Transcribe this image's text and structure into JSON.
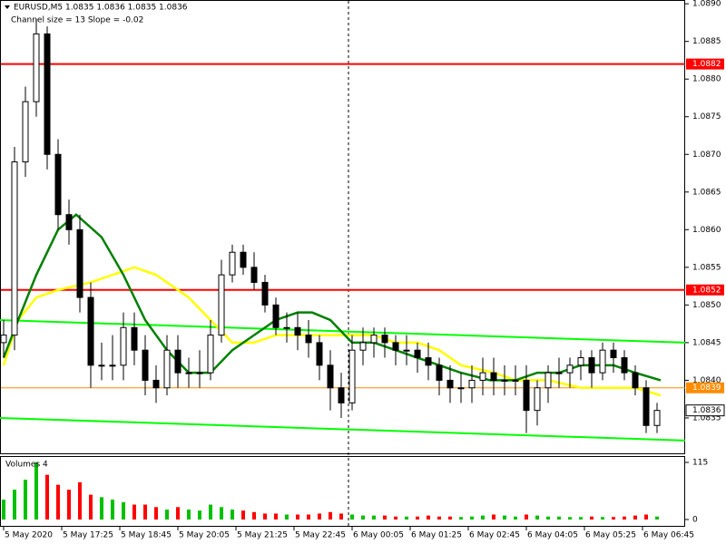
{
  "chart_data": {
    "type": "candlestick",
    "title": "EURUSD,M5  1.0835 1.0836 1.0835 1.0836",
    "subtitle": "Channel size = 13 Slope = -0.02",
    "x": [
      0,
      3,
      6,
      9,
      12,
      15,
      18,
      21,
      24,
      27,
      30,
      33,
      36,
      39,
      42,
      45,
      48,
      51,
      54,
      57,
      60,
      63,
      66,
      69,
      72,
      75,
      78,
      81,
      84,
      87,
      90,
      93,
      96,
      99,
      102,
      105,
      108,
      111,
      114,
      117,
      120,
      123,
      126,
      129,
      132,
      135,
      138,
      141,
      144,
      147,
      150,
      153,
      156,
      159,
      162,
      165,
      168,
      171,
      174,
      177,
      180
    ],
    "open": [
      1.0845,
      1.0846,
      1.0869,
      1.0877,
      1.0886,
      1.087,
      1.0862,
      1.086,
      1.0851,
      1.0842,
      1.0842,
      1.0842,
      1.0847,
      1.0844,
      1.084,
      1.0839,
      1.0844,
      1.0841,
      1.0841,
      1.0841,
      1.0846,
      1.0854,
      1.0857,
      1.0855,
      1.0853,
      1.085,
      1.0847,
      1.0847,
      1.0846,
      1.0845,
      1.0842,
      1.0839,
      1.0837,
      1.0844,
      1.0845,
      1.0846,
      1.0845,
      1.0844,
      1.0844,
      1.0843,
      1.0842,
      1.084,
      1.0839,
      1.0839,
      1.084,
      1.0841,
      1.084,
      1.084,
      1.084,
      1.0836,
      1.0839,
      1.0841,
      1.0841,
      1.0842,
      1.0843,
      1.0841,
      1.0844,
      1.0843,
      1.0841,
      1.0839,
      1.0834
    ],
    "high": [
      1.0848,
      1.0871,
      1.0879,
      1.0888,
      1.0887,
      1.0872,
      1.0864,
      1.0862,
      1.0853,
      1.0845,
      1.0846,
      1.0849,
      1.0849,
      1.0846,
      1.0842,
      1.0846,
      1.0846,
      1.0843,
      1.0844,
      1.0848,
      1.0856,
      1.0858,
      1.0858,
      1.0857,
      1.0854,
      1.0851,
      1.0849,
      1.0849,
      1.0848,
      1.0846,
      1.0844,
      1.0841,
      1.0846,
      1.0847,
      1.0847,
      1.0847,
      1.0846,
      1.0846,
      1.0845,
      1.0845,
      1.0843,
      1.0842,
      1.0841,
      1.0842,
      1.0843,
      1.0843,
      1.0842,
      1.0842,
      1.0842,
      1.084,
      1.0842,
      1.0843,
      1.0843,
      1.0844,
      1.0844,
      1.0845,
      1.0845,
      1.0844,
      1.0842,
      1.084,
      1.0837
    ],
    "low": [
      1.0843,
      1.0844,
      1.0867,
      1.0875,
      1.0868,
      1.086,
      1.0858,
      1.0849,
      1.0839,
      1.084,
      1.084,
      1.084,
      1.0842,
      1.0838,
      1.0837,
      1.0838,
      1.0839,
      1.0839,
      1.0839,
      1.084,
      1.0845,
      1.0853,
      1.0854,
      1.0852,
      1.0849,
      1.0846,
      1.0845,
      1.0844,
      1.0843,
      1.084,
      1.0836,
      1.0835,
      1.0836,
      1.0842,
      1.0843,
      1.0843,
      1.0842,
      1.0842,
      1.0841,
      1.084,
      1.0838,
      1.0837,
      1.0837,
      1.0837,
      1.0838,
      1.0838,
      1.0838,
      1.0838,
      1.0833,
      1.0834,
      1.0837,
      1.0839,
      1.0839,
      1.084,
      1.0839,
      1.084,
      1.0841,
      1.084,
      1.0838,
      1.0833,
      1.0833
    ],
    "close": [
      1.0846,
      1.0869,
      1.0877,
      1.0886,
      1.087,
      1.0862,
      1.086,
      1.0851,
      1.0842,
      1.0842,
      1.0842,
      1.0847,
      1.0844,
      1.084,
      1.0839,
      1.0844,
      1.0841,
      1.0841,
      1.0841,
      1.0846,
      1.0854,
      1.0857,
      1.0855,
      1.0853,
      1.085,
      1.0847,
      1.0847,
      1.0846,
      1.0845,
      1.0842,
      1.0839,
      1.0837,
      1.0844,
      1.0845,
      1.0846,
      1.0845,
      1.0844,
      1.0844,
      1.0843,
      1.0842,
      1.084,
      1.0839,
      1.0839,
      1.084,
      1.0841,
      1.084,
      1.084,
      1.084,
      1.0836,
      1.0839,
      1.0841,
      1.0841,
      1.0842,
      1.0843,
      1.0841,
      1.0844,
      1.0843,
      1.0841,
      1.0839,
      1.0834,
      1.0836
    ],
    "up_color": "#ffffff",
    "down_color": "#000000",
    "xlim": [
      -1,
      187.75
    ],
    "xticks": [
      {
        "value": 0,
        "label": "5 May 2020"
      },
      {
        "value": 16,
        "label": "5 May 17:25"
      },
      {
        "value": 32,
        "label": "5 May 18:45"
      },
      {
        "value": 48,
        "label": "5 May 20:05"
      },
      {
        "value": 64,
        "label": "5 May 21:25"
      },
      {
        "value": 80,
        "label": "5 May 22:45"
      },
      {
        "value": 96,
        "label": "6 May 00:05"
      },
      {
        "value": 112,
        "label": "6 May 01:25"
      },
      {
        "value": 128,
        "label": "6 May 02:45"
      },
      {
        "value": 144,
        "label": "6 May 04:05"
      },
      {
        "value": 160,
        "label": "6 May 05:25"
      },
      {
        "value": 176,
        "label": "6 May 06:45"
      }
    ],
    "ylim": [
      1.08303,
      1.08905
    ],
    "yticks": [
      {
        "value": 1.089,
        "label": "1.0890"
      },
      1.0885,
      {
        "value": 1.088,
        "label": "1.0880"
      },
      1.0875,
      {
        "value": 1.087,
        "label": "1.0870"
      },
      1.0865,
      {
        "value": 1.086,
        "label": "1.0860"
      },
      1.0855,
      {
        "value": 1.085,
        "label": "1.0850"
      },
      1.0845,
      {
        "value": 1.084,
        "label": "1.0840"
      },
      1.0835
    ],
    "series": [
      {
        "color": "#ffff00",
        "x": [
          0,
          4,
          9,
          15,
          24,
          36,
          42,
          51,
          57,
          63,
          69,
          75,
          84,
          93,
          102,
          108,
          114,
          120,
          126,
          135,
          141,
          150,
          159,
          168,
          174,
          181
        ],
        "values": [
          1.0842,
          1.0848,
          1.0851,
          1.0852,
          1.0853,
          1.0855,
          1.0854,
          1.0851,
          1.0848,
          1.0845,
          1.0845,
          1.0846,
          1.0846,
          1.0846,
          1.0846,
          1.0845,
          1.0845,
          1.0844,
          1.0842,
          1.0841,
          1.084,
          1.084,
          1.0839,
          1.0839,
          1.0839,
          1.0838
        ]
      },
      {
        "color": "#008000",
        "x": [
          0,
          4,
          9,
          15,
          20,
          27,
          33,
          39,
          45,
          51,
          57,
          63,
          69,
          75,
          81,
          85,
          90,
          96,
          102,
          108,
          114,
          120,
          126,
          134,
          141,
          147,
          153,
          159,
          168,
          174,
          181
        ],
        "values": [
          1.0843,
          1.0848,
          1.0854,
          1.086,
          1.0862,
          1.0859,
          1.0854,
          1.0848,
          1.0844,
          1.0841,
          1.0841,
          1.0844,
          1.0846,
          1.0848,
          1.0849,
          1.0849,
          1.0848,
          1.0845,
          1.0845,
          1.0844,
          1.0843,
          1.0842,
          1.0841,
          1.084,
          1.084,
          1.0841,
          1.0841,
          1.0842,
          1.0842,
          1.0841,
          1.084
        ]
      }
    ],
    "channel": {
      "color": "#00ff00",
      "x": [
        -1,
        187.75
      ],
      "upper": [
        1.0848,
        1.0845
      ],
      "lower": [
        1.0835,
        1.0832
      ]
    },
    "levels": [
      {
        "value": 1.0882,
        "color": "#ff0000"
      },
      {
        "value": 1.0852,
        "color": "#ff0000"
      },
      {
        "value": 1.0839,
        "color": "#ff8c00"
      }
    ],
    "current_price": 1.0836,
    "separator_x": 95,
    "volume": {
      "title": "Volumes 4",
      "up_color": "#00c000",
      "down_color": "#ff0000",
      "values": [
        40,
        60,
        80,
        115,
        90,
        70,
        60,
        75,
        50,
        45,
        40,
        35,
        30,
        30,
        25,
        20,
        25,
        20,
        18,
        30,
        25,
        20,
        18,
        15,
        12,
        12,
        10,
        10,
        10,
        12,
        15,
        12,
        10,
        8,
        8,
        8,
        6,
        6,
        6,
        8,
        6,
        6,
        5,
        6,
        8,
        10,
        8,
        6,
        10,
        8,
        6,
        6,
        5,
        5,
        6,
        5,
        5,
        6,
        8,
        10,
        6
      ],
      "ylim": [
        0,
        115
      ],
      "yticks": [
        0,
        115
      ]
    }
  }
}
